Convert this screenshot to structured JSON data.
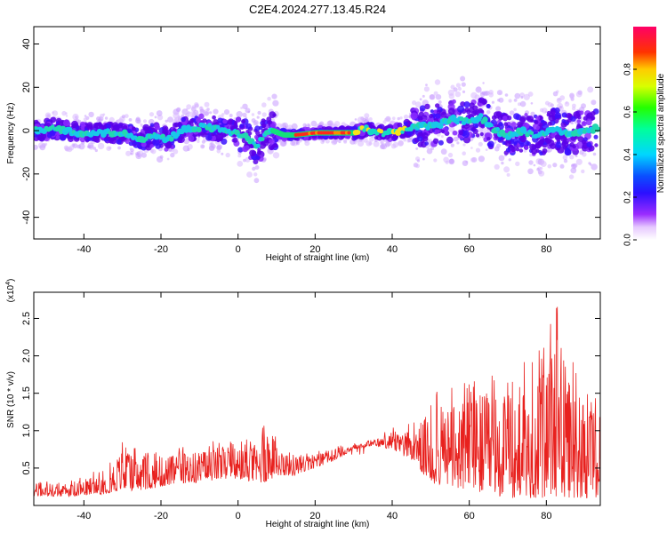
{
  "title": "C2E4.2024.277.13.45.R24",
  "colors": {
    "snr_line": "#e8211e",
    "frame": "#000000"
  },
  "chart_data": [
    {
      "type": "scatter",
      "subtype": "spectrogram",
      "xlabel": "Height of straight line (km)",
      "ylabel": "Frequency (Hz)",
      "xlim": [
        -53,
        94
      ],
      "ylim": [
        -50,
        48
      ],
      "xticks": [
        -40,
        -20,
        0,
        20,
        40,
        60,
        80
      ],
      "yticks": [
        -40,
        -20,
        0,
        20,
        40
      ],
      "colorbar": {
        "label": "Normalized spectral amplitude",
        "range": [
          0,
          1
        ],
        "ticks": [
          "0.0",
          "0.2",
          "0.4",
          "0.6",
          "0.8"
        ],
        "colormap": "rainbow (violet to red)"
      },
      "center_frequency": [
        [
          -52,
          0
        ],
        [
          -48,
          1
        ],
        [
          -44,
          0
        ],
        [
          -40,
          -1
        ],
        [
          -36,
          -1
        ],
        [
          -32,
          -1
        ],
        [
          -28,
          -2
        ],
        [
          -25,
          -4
        ],
        [
          -22,
          -2
        ],
        [
          -18,
          -4
        ],
        [
          -15,
          0
        ],
        [
          -12,
          1
        ],
        [
          -8,
          2
        ],
        [
          -4,
          0
        ],
        [
          -1,
          -1
        ],
        [
          2,
          -3
        ],
        [
          5,
          -7
        ],
        [
          7,
          -2
        ],
        [
          9,
          0
        ],
        [
          12,
          -2
        ],
        [
          15,
          -2
        ],
        [
          20,
          -1
        ],
        [
          25,
          -1
        ],
        [
          30,
          -1
        ],
        [
          33,
          1
        ],
        [
          37,
          -1
        ],
        [
          40,
          -1
        ],
        [
          44,
          1
        ],
        [
          48,
          2
        ],
        [
          52,
          3
        ],
        [
          56,
          5
        ],
        [
          60,
          4
        ],
        [
          63,
          6
        ],
        [
          66,
          1
        ],
        [
          70,
          -3
        ],
        [
          74,
          0
        ],
        [
          78,
          -3
        ],
        [
          82,
          1
        ],
        [
          86,
          -2
        ],
        [
          90,
          0
        ],
        [
          93,
          1
        ]
      ]
    },
    {
      "type": "line",
      "xlabel": "Height of straight line (km)",
      "ylabel": "SNR (10 * v/v)",
      "y_multiplier": "(x10^4)",
      "xlim": [
        -53,
        94
      ],
      "ylim": [
        0,
        2.85
      ],
      "xticks": [
        -40,
        -20,
        0,
        20,
        40,
        60,
        80
      ],
      "yticks": [
        "0.5",
        "1.0",
        "1.5",
        "2.0",
        "2.5"
      ],
      "series": [
        {
          "values_envelope": [
            [
              -53,
              0.12,
              0.35
            ],
            [
              -45,
              0.12,
              0.3
            ],
            [
              -35,
              0.15,
              0.5
            ],
            [
              -30,
              0.2,
              0.9
            ],
            [
              -25,
              0.2,
              0.7
            ],
            [
              -20,
              0.25,
              0.75
            ],
            [
              -15,
              0.3,
              0.8
            ],
            [
              -10,
              0.3,
              0.85
            ],
            [
              -5,
              0.35,
              0.9
            ],
            [
              0,
              0.35,
              0.85
            ],
            [
              5,
              0.3,
              0.95
            ],
            [
              7,
              0.3,
              1.45
            ],
            [
              10,
              0.4,
              0.9
            ],
            [
              15,
              0.4,
              0.75
            ],
            [
              20,
              0.5,
              0.75
            ],
            [
              25,
              0.6,
              0.8
            ],
            [
              30,
              0.75,
              0.85
            ],
            [
              35,
              0.8,
              0.9
            ],
            [
              40,
              0.75,
              1.05
            ],
            [
              45,
              0.6,
              1.1
            ],
            [
              50,
              0.3,
              1.5
            ],
            [
              55,
              0.25,
              1.65
            ],
            [
              60,
              0.2,
              1.8
            ],
            [
              65,
              0.15,
              1.85
            ],
            [
              70,
              0.1,
              1.75
            ],
            [
              75,
              0.1,
              1.95
            ],
            [
              80,
              0.1,
              2.2
            ],
            [
              83,
              0.1,
              2.85
            ],
            [
              85,
              0.1,
              2.3
            ],
            [
              88,
              0.1,
              1.75
            ],
            [
              90,
              0.1,
              1.6
            ],
            [
              94,
              0.1,
              1.5
            ]
          ]
        }
      ]
    }
  ]
}
